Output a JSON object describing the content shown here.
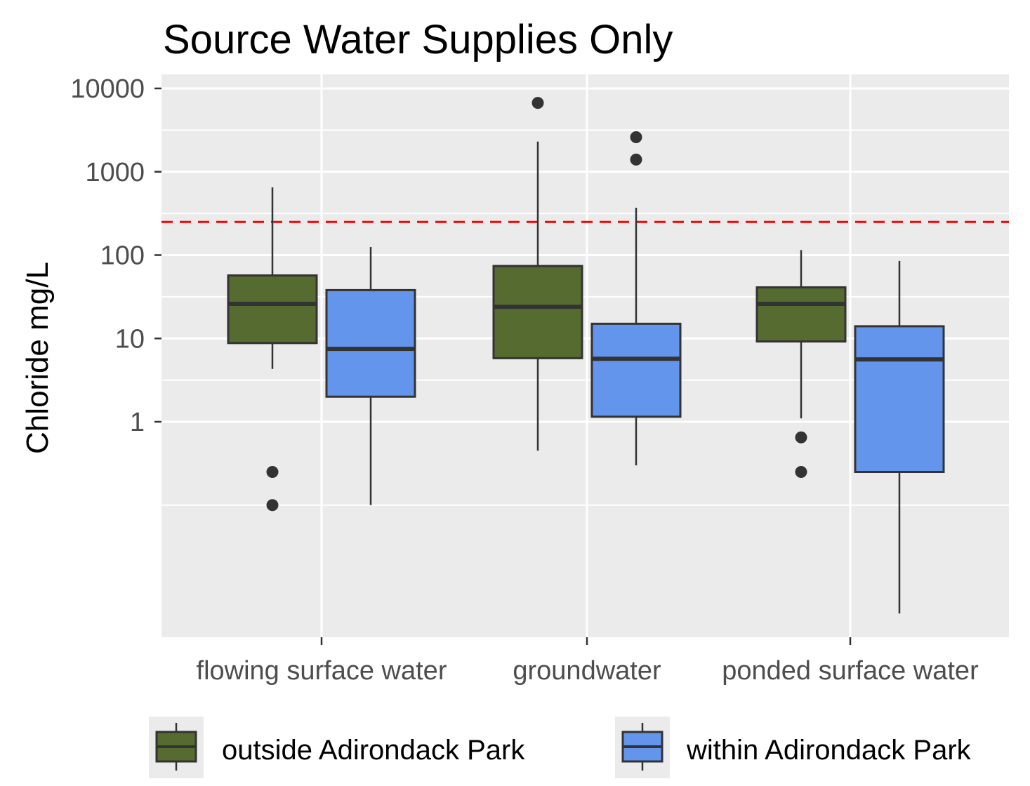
{
  "chart_data": {
    "type": "boxplot",
    "title": "Source Water Supplies Only",
    "xlabel": "",
    "ylabel": "Chloride mg/L",
    "y_scale": "log10",
    "ylim": [
      0.001,
      15000
    ],
    "y_ticks": [
      {
        "value": 1,
        "label": "1"
      },
      {
        "value": 10,
        "label": "10"
      },
      {
        "value": 100,
        "label": "100"
      },
      {
        "value": 1000,
        "label": "1000"
      },
      {
        "value": 10000,
        "label": "10000"
      }
    ],
    "y_minor_gridlines": [
      0.1,
      3.16,
      31.6,
      316,
      3162
    ],
    "categories": [
      "flowing surface water",
      "groundwater",
      "ponded surface water"
    ],
    "reference_line": {
      "value": 250,
      "color": "#ff0000",
      "style": "dashed"
    },
    "grid": true,
    "legend_position": "bottom",
    "series": [
      {
        "name": "outside Adirondack Park",
        "color": "#556b2f",
        "boxes": [
          {
            "category": "flowing surface water",
            "whisker_low": 4.3,
            "q1": 8.8,
            "median": 26,
            "q3": 57,
            "whisker_high": 650,
            "outliers": [
              0.25,
              0.1
            ]
          },
          {
            "category": "groundwater",
            "whisker_low": 0.45,
            "q1": 5.8,
            "median": 24,
            "q3": 74,
            "whisker_high": 2300,
            "outliers": [
              6700
            ]
          },
          {
            "category": "ponded surface water",
            "whisker_low": 1.1,
            "q1": 9.2,
            "median": 26,
            "q3": 41,
            "whisker_high": 115,
            "outliers": [
              0.65,
              0.25
            ]
          }
        ]
      },
      {
        "name": "within Adirondack Park",
        "color": "#6495ed",
        "boxes": [
          {
            "category": "flowing surface water",
            "whisker_low": 0.1,
            "q1": 2.0,
            "median": 7.5,
            "q3": 38,
            "whisker_high": 125,
            "outliers": []
          },
          {
            "category": "groundwater",
            "whisker_low": 0.3,
            "q1": 1.15,
            "median": 5.7,
            "q3": 15,
            "whisker_high": 370,
            "outliers": [
              2600,
              1400
            ]
          },
          {
            "category": "ponded surface water",
            "whisker_low": 0.005,
            "q1": 0.25,
            "median": 5.6,
            "q3": 14,
            "whisker_high": 85,
            "outliers": []
          }
        ]
      }
    ]
  }
}
